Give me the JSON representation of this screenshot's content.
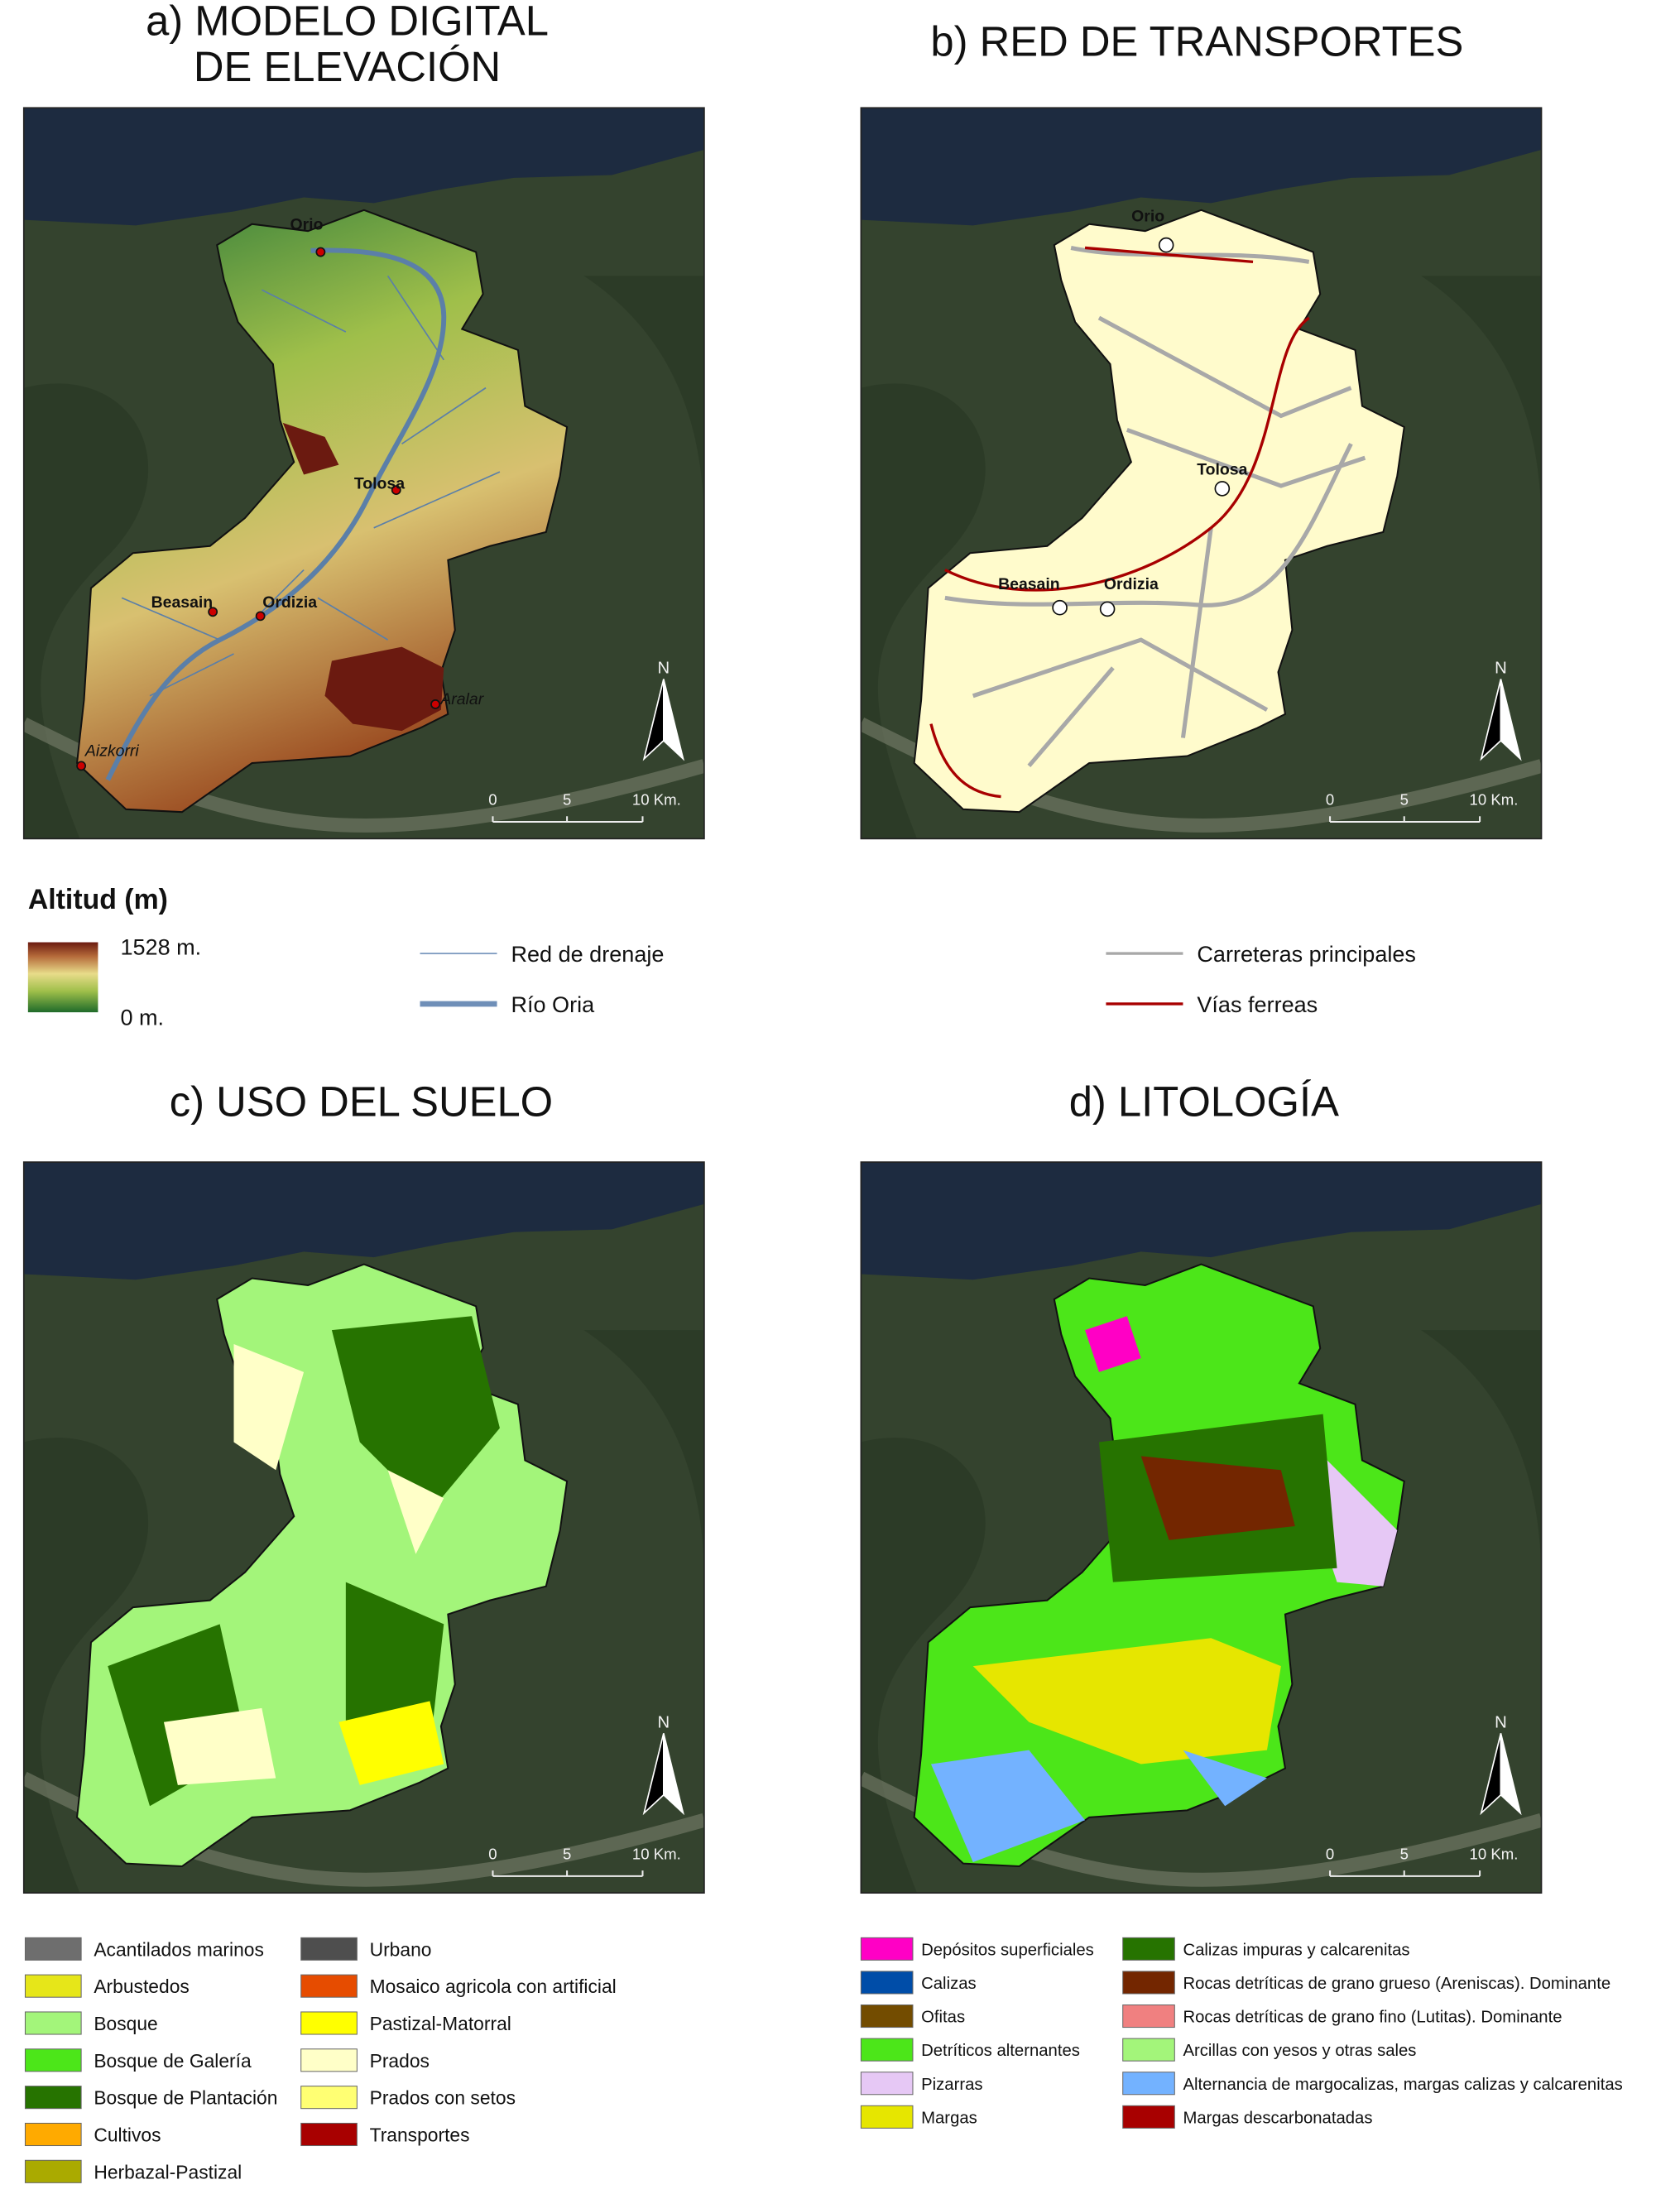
{
  "panels": [
    {
      "title_lines": [
        "a) MODELO DIGITAL",
        "DE ELEVACIÓN"
      ],
      "places": [
        "Orio",
        "Tolosa",
        "Beasain",
        "Ordizia",
        "Aralar",
        "Aizkorri"
      ],
      "scale_labels": [
        "0",
        "5",
        "10 Km."
      ],
      "north": "N"
    },
    {
      "title_lines": [
        "b) RED DE TRANSPORTES"
      ],
      "places": [
        "Orio",
        "Tolosa",
        "Beasain",
        "Ordizia"
      ],
      "scale_labels": [
        "0",
        "5",
        "10 Km."
      ],
      "north": "N"
    },
    {
      "title_lines": [
        "c) USO DEL SUELO"
      ],
      "places": [],
      "scale_labels": [
        "0",
        "5",
        "10 Km."
      ],
      "north": "N"
    },
    {
      "title_lines": [
        "d) LITOLOGÍA"
      ],
      "places": [],
      "scale_labels": [
        "0",
        "5",
        "10 Km."
      ],
      "north": "N"
    }
  ],
  "elevation_legend": {
    "title": "Altitud (m)",
    "max_label": "1528 m.",
    "min_label": "0 m."
  },
  "lines_legend": [
    {
      "label": "Red de drenaje",
      "color": "#6f8fb8"
    },
    {
      "label": "Río Oria",
      "color": "#6f8fb8"
    },
    {
      "label": "Carreteras principales",
      "color": "#a8a8a8"
    },
    {
      "label": "Vías ferreas",
      "color": "#a80000"
    }
  ],
  "land_use_legend": [
    {
      "label": "Acantilados marinos",
      "color": "#6e6e6e"
    },
    {
      "label": "Arbustedos",
      "color": "#e6e619"
    },
    {
      "label": "Bosque",
      "color": "#a3f57a"
    },
    {
      "label": "Bosque de Galería",
      "color": "#4ce619"
    },
    {
      "label": "Bosque de Plantación",
      "color": "#267300"
    },
    {
      "label": "Cultivos",
      "color": "#ffaa00"
    },
    {
      "label": "Herbazal-Pastizal",
      "color": "#aaaa00"
    },
    {
      "label": "Urbano",
      "color": "#4e4e4e"
    },
    {
      "label": "Mosaico agricola con artificial",
      "color": "#e64c00"
    },
    {
      "label": "Pastizal-Matorral",
      "color": "#ffff00"
    },
    {
      "label": "Prados",
      "color": "#ffffc8"
    },
    {
      "label": "Prados con setos",
      "color": "#ffff73"
    },
    {
      "label": "Transportes",
      "color": "#a80000"
    }
  ],
  "lithology_legend": [
    {
      "label": "Depósitos superficiales",
      "color": "#ff00c5"
    },
    {
      "label": "Calizas",
      "color": "#004da8"
    },
    {
      "label": "Ofitas",
      "color": "#734c00"
    },
    {
      "label": "Detríticos alternantes",
      "color": "#4ce619"
    },
    {
      "label": "Pizarras",
      "color": "#e6c8f5"
    },
    {
      "label": "Margas",
      "color": "#e6e600"
    },
    {
      "label": "Calizas impuras y calcarenitas",
      "color": "#267300"
    },
    {
      "label": "Rocas detríticas de grano grueso (Areniscas). Dominante",
      "color": "#732600"
    },
    {
      "label": "Rocas detríticas de grano fino (Lutitas). Dominante",
      "color": "#f08080"
    },
    {
      "label": "Arcillas con yesos y otras sales",
      "color": "#a3f57a"
    },
    {
      "label": "Alternancia de margocalizas, margas calizas y calcarenitas",
      "color": "#73b2ff"
    },
    {
      "label": "Margas descarbonatadas",
      "color": "#a80000"
    }
  ]
}
